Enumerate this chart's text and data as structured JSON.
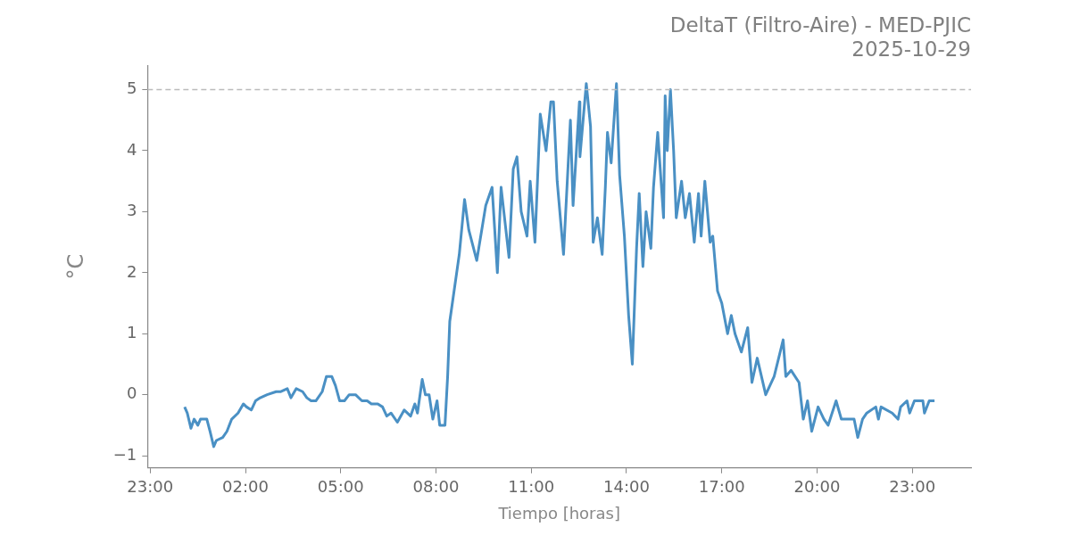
{
  "chart_data": {
    "type": "line",
    "title": "DeltaT (Filtro-Aire) - MED-PJIC",
    "subtitle": "2025-10-29",
    "xlabel": "Tiempo [horas]",
    "ylabel": "°C",
    "x": [
      "2025-10-29T00:05",
      "2025-10-29T00:10",
      "2025-10-29T00:17",
      "2025-10-29T00:23",
      "2025-10-29T00:30",
      "2025-10-29T00:35",
      "2025-10-29T00:47",
      "2025-10-29T00:53",
      "2025-10-29T01:00",
      "2025-10-29T01:05",
      "2025-10-29T01:17",
      "2025-10-29T01:25",
      "2025-10-29T01:34",
      "2025-10-29T01:46",
      "2025-10-29T01:56",
      "2025-10-29T02:02",
      "2025-10-29T02:11",
      "2025-10-29T02:19",
      "2025-10-29T02:28",
      "2025-10-29T02:41",
      "2025-10-29T02:58",
      "2025-10-29T03:06",
      "2025-10-29T03:19",
      "2025-10-29T03:26",
      "2025-10-29T03:36",
      "2025-10-29T03:48",
      "2025-10-29T03:56",
      "2025-10-29T04:04",
      "2025-10-29T04:13",
      "2025-10-29T04:25",
      "2025-10-29T04:33",
      "2025-10-29T04:43",
      "2025-10-29T04:50",
      "2025-10-29T04:58",
      "2025-10-29T05:07",
      "2025-10-29T05:16",
      "2025-10-29T05:28",
      "2025-10-29T05:40",
      "2025-10-29T05:50",
      "2025-10-29T05:58",
      "2025-10-29T06:10",
      "2025-10-29T06:19",
      "2025-10-29T06:27",
      "2025-10-29T06:35",
      "2025-10-29T06:47",
      "2025-10-29T07:00",
      "2025-10-29T07:12",
      "2025-10-29T07:20",
      "2025-10-29T07:25",
      "2025-10-29T07:34",
      "2025-10-29T07:40",
      "2025-10-29T07:47",
      "2025-10-29T07:54",
      "2025-10-29T08:02",
      "2025-10-29T08:07",
      "2025-10-29T08:17",
      "2025-10-29T08:22",
      "2025-10-29T08:26",
      "2025-10-29T08:44",
      "2025-10-29T08:54",
      "2025-10-29T09:02",
      "2025-10-29T09:17",
      "2025-10-29T09:34",
      "2025-10-29T09:46",
      "2025-10-29T09:56",
      "2025-10-29T10:03",
      "2025-10-29T10:18",
      "2025-10-29T10:26",
      "2025-10-29T10:33",
      "2025-10-29T10:41",
      "2025-10-29T10:52",
      "2025-10-29T10:58",
      "2025-10-29T11:07",
      "2025-10-29T11:17",
      "2025-10-29T11:28",
      "2025-10-29T11:37",
      "2025-10-29T11:42",
      "2025-10-29T11:49",
      "2025-10-29T12:01",
      "2025-10-29T12:14",
      "2025-10-29T12:19",
      "2025-10-29T12:31",
      "2025-10-29T12:32",
      "2025-10-29T12:44",
      "2025-10-29T12:52",
      "2025-10-29T12:57",
      "2025-10-29T13:05",
      "2025-10-29T13:14",
      "2025-10-29T13:20",
      "2025-10-29T13:24",
      "2025-10-29T13:31",
      "2025-10-29T13:41",
      "2025-10-29T13:47",
      "2025-10-29T13:56",
      "2025-10-29T14:04",
      "2025-10-29T14:11",
      "2025-10-29T14:19",
      "2025-10-29T14:24",
      "2025-10-29T14:31",
      "2025-10-29T14:37",
      "2025-10-29T14:46",
      "2025-10-29T14:51",
      "2025-10-29T14:59",
      "2025-10-29T15:10",
      "2025-10-29T15:13",
      "2025-10-29T15:17",
      "2025-10-29T15:23",
      "2025-10-29T15:29",
      "2025-10-29T15:34",
      "2025-10-29T15:44",
      "2025-10-29T15:51",
      "2025-10-29T15:59",
      "2025-10-29T16:08",
      "2025-10-29T16:16",
      "2025-10-29T16:21",
      "2025-10-29T16:28",
      "2025-10-29T16:38",
      "2025-10-29T16:43",
      "2025-10-29T16:52",
      "2025-10-29T17:00",
      "2025-10-29T17:11",
      "2025-10-29T17:18",
      "2025-10-29T17:25",
      "2025-10-29T17:37",
      "2025-10-29T17:49",
      "2025-10-29T17:57",
      "2025-10-29T18:07",
      "2025-10-29T18:23",
      "2025-10-29T18:39",
      "2025-10-29T18:56",
      "2025-10-29T19:01",
      "2025-10-29T19:11",
      "2025-10-29T19:26",
      "2025-10-29T19:34",
      "2025-10-29T19:42",
      "2025-10-29T19:50",
      "2025-10-29T20:02",
      "2025-10-29T20:13",
      "2025-10-29T20:21",
      "2025-10-29T20:36",
      "2025-10-29T20:46",
      "2025-10-29T21:10",
      "2025-10-29T21:17",
      "2025-10-29T21:26",
      "2025-10-29T21:34",
      "2025-10-29T21:51",
      "2025-10-29T21:56",
      "2025-10-29T22:01",
      "2025-10-29T22:22",
      "2025-10-29T22:33",
      "2025-10-29T22:38",
      "2025-10-29T22:50",
      "2025-10-29T22:55",
      "2025-10-29T23:04",
      "2025-10-29T23:20",
      "2025-10-29T23:23",
      "2025-10-29T23:32",
      "2025-10-29T23:42"
    ],
    "series": [
      {
        "color": "#4a90c4",
        "values": [
          -0.2,
          -0.3,
          -0.55,
          -0.4,
          -0.5,
          -0.4,
          -0.4,
          -0.6,
          -0.85,
          -0.75,
          -0.7,
          -0.6,
          -0.4,
          -0.3,
          -0.15,
          -0.2,
          -0.25,
          -0.1,
          -0.05,
          0.0,
          0.05,
          0.05,
          0.1,
          -0.05,
          0.1,
          0.05,
          -0.05,
          -0.1,
          -0.1,
          0.05,
          0.3,
          0.3,
          0.15,
          -0.1,
          -0.1,
          0.0,
          0.0,
          -0.1,
          -0.1,
          -0.15,
          -0.15,
          -0.2,
          -0.35,
          -0.3,
          -0.45,
          -0.25,
          -0.35,
          -0.15,
          -0.3,
          0.25,
          0.0,
          0.0,
          -0.4,
          -0.1,
          -0.5,
          -0.5,
          0.3,
          1.2,
          2.3,
          3.2,
          2.7,
          2.2,
          3.1,
          3.4,
          2.0,
          3.4,
          2.25,
          3.7,
          3.9,
          3.0,
          2.6,
          3.5,
          2.5,
          4.6,
          4.0,
          4.8,
          4.8,
          3.5,
          2.3,
          4.5,
          3.1,
          4.8,
          3.9,
          5.1,
          4.4,
          2.5,
          2.9,
          2.3,
          3.4,
          4.3,
          3.8,
          5.1,
          3.6,
          2.6,
          1.3,
          0.5,
          2.4,
          3.3,
          2.1,
          3.0,
          2.4,
          3.4,
          4.3,
          2.9,
          4.9,
          4.0,
          5.0,
          4.0,
          2.9,
          3.5,
          2.9,
          3.3,
          2.5,
          3.3,
          2.6,
          3.5,
          2.5,
          2.6,
          1.7,
          1.5,
          1.0,
          1.3,
          1.0,
          0.7,
          1.1,
          0.2,
          0.6,
          0.0,
          0.3,
          0.9,
          0.3,
          0.4,
          0.2,
          -0.4,
          -0.1,
          -0.6,
          -0.2,
          -0.4,
          -0.5,
          -0.1,
          -0.4,
          -0.4,
          -0.7,
          -0.4,
          -0.3,
          -0.2,
          -0.4,
          -0.2,
          -0.3,
          -0.4,
          -0.2,
          -0.1,
          -0.3,
          -0.1,
          -0.1,
          -0.3,
          -0.1,
          -0.1
        ]
      }
    ],
    "xlim": [
      "2025-10-28T22:55",
      "2025-10-30T00:51"
    ],
    "ylim": [
      -1.2,
      5.4
    ],
    "xticks": [
      {
        "value": "2025-10-28T23:00",
        "label": "23:00"
      },
      {
        "value": "2025-10-29T02:00",
        "label": "02:00"
      },
      {
        "value": "2025-10-29T05:00",
        "label": "05:00"
      },
      {
        "value": "2025-10-29T08:00",
        "label": "08:00"
      },
      {
        "value": "2025-10-29T11:00",
        "label": "11:00"
      },
      {
        "value": "2025-10-29T14:00",
        "label": "14:00"
      },
      {
        "value": "2025-10-29T17:00",
        "label": "17:00"
      },
      {
        "value": "2025-10-29T20:00",
        "label": "20:00"
      },
      {
        "value": "2025-10-29T23:00",
        "label": "23:00"
      }
    ],
    "yticks": [
      -1,
      0,
      1,
      2,
      3,
      4,
      5
    ],
    "ref_lines": [
      {
        "axis": "y",
        "value": 5,
        "color": "#bbbbbb",
        "line_style": "dashed"
      }
    ],
    "grid": false,
    "legend": false,
    "marker": "none",
    "line_style": "solid"
  }
}
